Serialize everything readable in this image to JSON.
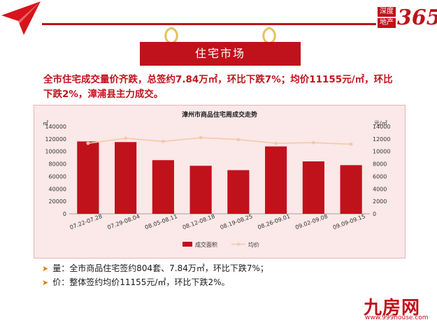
{
  "logo": {
    "text_a": "深度",
    "text_b": "地产",
    "number": "365"
  },
  "section_title": "住宅市场",
  "headline": "全市住宅成交量价齐跌，总签约7.84万㎡，环比下跌7%；均价11155元/㎡，环比下跌2%，漳浦县主力成交。",
  "bullets": [
    {
      "label": "量：",
      "text": "全市商品住宅签约804套、7.84万㎡，环比下跌7%；"
    },
    {
      "label": "价：",
      "text": "整体签约均价11155元/㎡，环比下跌2%。"
    }
  ],
  "watermark": {
    "text": "九房网",
    "url": "www.999house.com"
  },
  "colors": {
    "accent": "#c0121b",
    "line": "#f2c9a8",
    "panel": "#fbe8e8"
  },
  "chart_data": {
    "type": "bar",
    "title": "漳州市商品住宅周成交走势",
    "y_left_unit": "㎡",
    "y_right_unit": "元/㎡",
    "y_left_ticks": [
      "140000",
      "120000",
      "100000",
      "80000",
      "60000",
      "40000",
      "20000",
      "0"
    ],
    "y_right_ticks": [
      "14000",
      "12000",
      "10000",
      "8000",
      "6000",
      "4000",
      "2000",
      "0"
    ],
    "ylim_left": [
      0,
      140000
    ],
    "ylim_right": [
      0,
      14000
    ],
    "categories": [
      "07.22-07.28",
      "07.29-08.04",
      "08.05-08.11",
      "08.12-08.18",
      "08.19-08.25",
      "08.26-09.01",
      "09.02-09.08",
      "09.09-09.15"
    ],
    "series": [
      {
        "name": "成交面积",
        "type": "bar",
        "axis": "left",
        "values": [
          116000,
          115000,
          86000,
          77000,
          70000,
          108000,
          84000,
          78000
        ]
      },
      {
        "name": "均价",
        "type": "line",
        "axis": "right",
        "values": [
          11300,
          12100,
          11600,
          12200,
          11900,
          11300,
          11400,
          11155
        ]
      }
    ],
    "legend_position": "bottom",
    "grid": false
  }
}
